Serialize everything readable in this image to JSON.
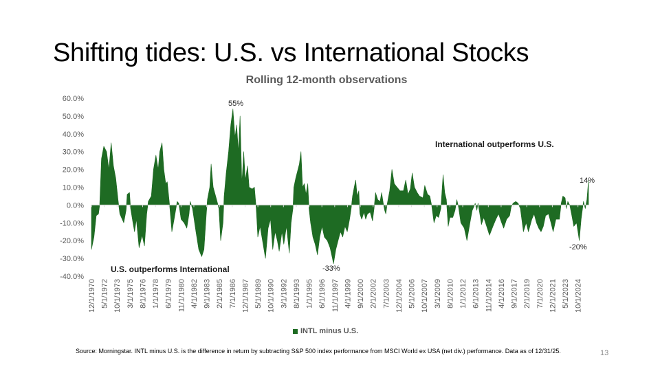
{
  "slide": {
    "title": "Shifting tides: U.S. vs International Stocks",
    "source": "Source: Morningstar. INTL minus U.S. is the difference in return by subtracting S&P 500 index performance from MSCI World ex USA (net div.) performance. Data as of 12/31/25.",
    "page_number": "13"
  },
  "chart_data": {
    "type": "area",
    "title": "Rolling 12-month observations",
    "xlabel": "",
    "ylabel": "",
    "ylim": [
      -40,
      60
    ],
    "yticks": [
      "-40.0%",
      "-30.0%",
      "-20.0%",
      "-10.0%",
      "0.0%",
      "10.0%",
      "20.0%",
      "30.0%",
      "40.0%",
      "50.0%",
      "60.0%"
    ],
    "ytick_values": [
      -40,
      -30,
      -20,
      -10,
      0,
      10,
      20,
      30,
      40,
      50,
      60
    ],
    "xlim": [
      1970.917,
      2025.917
    ],
    "xticks": [
      "12/1/1970",
      "5/1/1972",
      "10/1/1973",
      "3/1/1975",
      "8/1/1976",
      "1/1/1978",
      "6/1/1979",
      "11/1/1980",
      "4/1/1982",
      "9/1/1983",
      "2/1/1985",
      "7/1/1986",
      "12/1/1987",
      "5/1/1989",
      "10/1/1990",
      "3/1/1992",
      "8/1/1993",
      "1/1/1995",
      "6/1/1996",
      "11/1/1997",
      "4/1/1999",
      "9/1/2000",
      "2/1/2002",
      "7/1/2003",
      "12/1/2004",
      "5/1/2006",
      "10/1/2007",
      "3/1/2009",
      "8/1/2010",
      "1/1/2012",
      "6/1/2013",
      "11/1/2014",
      "4/1/2016",
      "9/1/2017",
      "2/1/2019",
      "7/1/2020",
      "12/1/2021",
      "5/1/2023",
      "10/1/2024"
    ],
    "legend": {
      "position": "bottom",
      "entries": [
        "INTL minus U.S."
      ]
    },
    "colors": {
      "series": "#1e6b23",
      "zero_line": "#d9d9d9"
    },
    "annotations": [
      {
        "text": "55%",
        "x": 1986.6,
        "y": 55
      },
      {
        "text": "-33%",
        "x": 1997.7,
        "y": -33
      },
      {
        "text": "14%",
        "x": 2025.9,
        "y": 14
      },
      {
        "text": "-20%",
        "x": 2024.9,
        "y": -20
      },
      {
        "text": "International outperforms U.S.",
        "region": "upper-right"
      },
      {
        "text": "U.S. outperforms International",
        "region": "lower-left"
      }
    ],
    "series": [
      {
        "name": "INTL minus U.S.",
        "x": [
          1970.92,
          1971.2,
          1971.45,
          1971.7,
          1971.83,
          1972.03,
          1972.29,
          1972.59,
          1972.85,
          1973.1,
          1973.35,
          1973.61,
          1973.86,
          1974.06,
          1974.32,
          1974.49,
          1974.75,
          1974.87,
          1975.13,
          1975.25,
          1975.51,
          1975.69,
          1975.89,
          1976.19,
          1976.52,
          1976.78,
          1977.03,
          1977.21,
          1977.54,
          1977.79,
          1978.05,
          1978.3,
          1978.48,
          1978.73,
          1978.93,
          1979.14,
          1979.31,
          1979.57,
          1979.82,
          1980.07,
          1980.4,
          1980.58,
          1980.84,
          1981.17,
          1981.47,
          1981.72,
          1981.85,
          1982.1,
          1982.48,
          1982.79,
          1983.12,
          1983.37,
          1983.63,
          1983.75,
          1984.01,
          1984.16,
          1984.39,
          1984.77,
          1985.02,
          1985.22,
          1985.48,
          1985.6,
          1985.83,
          1986.09,
          1986.34,
          1986.57,
          1986.8,
          1986.98,
          1987.18,
          1987.36,
          1987.56,
          1987.77,
          1987.94,
          1988.19,
          1988.37,
          1988.7,
          1988.95,
          1989.15,
          1989.33,
          1989.58,
          1989.84,
          1990.17,
          1990.47,
          1990.73,
          1990.98,
          1991.24,
          1991.49,
          1991.69,
          1992.0,
          1992.2,
          1992.5,
          1992.81,
          1993.01,
          1993.21,
          1993.31,
          1993.52,
          1993.77,
          1993.92,
          1994.1,
          1994.28,
          1994.48,
          1994.66,
          1994.86,
          1994.99,
          1995.17,
          1995.42,
          1995.67,
          1995.93,
          1996.18,
          1996.43,
          1996.69,
          1997.02,
          1997.32,
          1997.58,
          1997.7,
          1997.96,
          1998.21,
          1998.47,
          1998.72,
          1998.97,
          1999.22,
          1999.48,
          1999.66,
          1999.81,
          1999.99,
          2000.16,
          2000.32,
          2000.5,
          2000.62,
          2000.82,
          2001.08,
          2001.26,
          2001.46,
          2001.76,
          2002.02,
          2002.19,
          2002.35,
          2002.6,
          2002.85,
          2003.03,
          2003.21,
          2003.36,
          2003.49,
          2003.66,
          2003.92,
          2004.17,
          2004.43,
          2004.73,
          2005.06,
          2005.44,
          2005.7,
          2005.95,
          2006.2,
          2006.41,
          2006.66,
          2006.96,
          2007.22,
          2007.6,
          2007.8,
          2008.11,
          2008.36,
          2008.56,
          2008.82,
          2009.07,
          2009.33,
          2009.58,
          2009.76,
          2009.83,
          2010.01,
          2010.19,
          2010.39,
          2010.59,
          2010.9,
          2011.15,
          2011.35,
          2011.53,
          2011.79,
          2012.17,
          2012.47,
          2012.8,
          2013.05,
          2013.23,
          2013.38,
          2013.56,
          2013.69,
          2013.89,
          2014.07,
          2014.32,
          2014.65,
          2014.96,
          2015.34,
          2015.67,
          2015.97,
          2016.23,
          2016.53,
          2016.86,
          2017.19,
          2017.37,
          2017.57,
          2017.87,
          2018.13,
          2018.38,
          2018.71,
          2019.02,
          2019.27,
          2019.65,
          2019.9,
          2020.16,
          2020.41,
          2020.67,
          2020.92,
          2021.17,
          2021.5,
          2021.76,
          2022.01,
          2022.31,
          2022.7,
          2022.9,
          2023.08,
          2023.33,
          2023.48,
          2023.63,
          2023.84,
          2024.04,
          2024.29,
          2024.6,
          2024.9,
          2025.1,
          2025.36,
          2025.56,
          2025.74,
          2025.92
        ],
        "values": [
          -25,
          -18,
          -6,
          -5,
          0,
          26,
          33,
          30,
          20,
          35,
          22,
          15,
          3,
          -5,
          -8,
          -10,
          -3,
          6,
          7,
          -2,
          -10,
          -15,
          -8,
          -24,
          -17,
          -23,
          -5,
          2,
          5,
          20,
          28,
          20,
          30,
          35,
          20,
          12,
          13,
          0,
          -15,
          -8,
          2,
          1,
          -8,
          -10,
          -13,
          -5,
          2,
          -2,
          -15,
          -25,
          -29,
          -25,
          -5,
          3,
          10,
          23,
          10,
          3,
          -2,
          -20,
          -10,
          5,
          18,
          30,
          45,
          54,
          38,
          45,
          30,
          50,
          12,
          30,
          14,
          22,
          10,
          9,
          10,
          -2,
          -18,
          -12,
          -20,
          -30,
          -13,
          -8,
          -25,
          -15,
          -20,
          -26,
          -15,
          -22,
          -12,
          -27,
          -10,
          -2,
          10,
          15,
          20,
          23,
          30,
          10,
          12,
          6,
          12,
          -2,
          -10,
          -18,
          -22,
          -28,
          -18,
          -12,
          -18,
          -20,
          -24,
          -30,
          -33,
          -25,
          -20,
          -15,
          -18,
          -12,
          -15,
          -8,
          -2,
          5,
          10,
          14,
          5,
          8,
          -5,
          -8,
          -4,
          -8,
          -5,
          -4,
          -9,
          -2,
          7,
          3,
          2,
          7,
          1,
          -3,
          -5,
          1,
          8,
          20,
          12,
          10,
          8,
          8,
          14,
          6,
          9,
          18,
          10,
          7,
          5,
          4,
          11,
          6,
          5,
          0,
          -10,
          -6,
          -7,
          -2,
          12,
          17,
          7,
          3,
          -12,
          -7,
          -7,
          -3,
          3,
          -1,
          -10,
          -13,
          -20,
          -10,
          -3,
          -1,
          1,
          -3,
          1,
          -5,
          -11,
          -7,
          -12,
          -17,
          -12,
          -8,
          -5,
          -9,
          -13,
          -8,
          -6,
          -1,
          1,
          2,
          1,
          -2,
          -15,
          -10,
          -15,
          -8,
          -5,
          -10,
          -13,
          -15,
          -12,
          -6,
          -5,
          -10,
          -15,
          -8,
          -8,
          1,
          5,
          4,
          -2,
          2,
          0,
          -5,
          -12,
          -10,
          -20,
          -8,
          2,
          -2,
          3,
          14
        ]
      }
    ]
  }
}
